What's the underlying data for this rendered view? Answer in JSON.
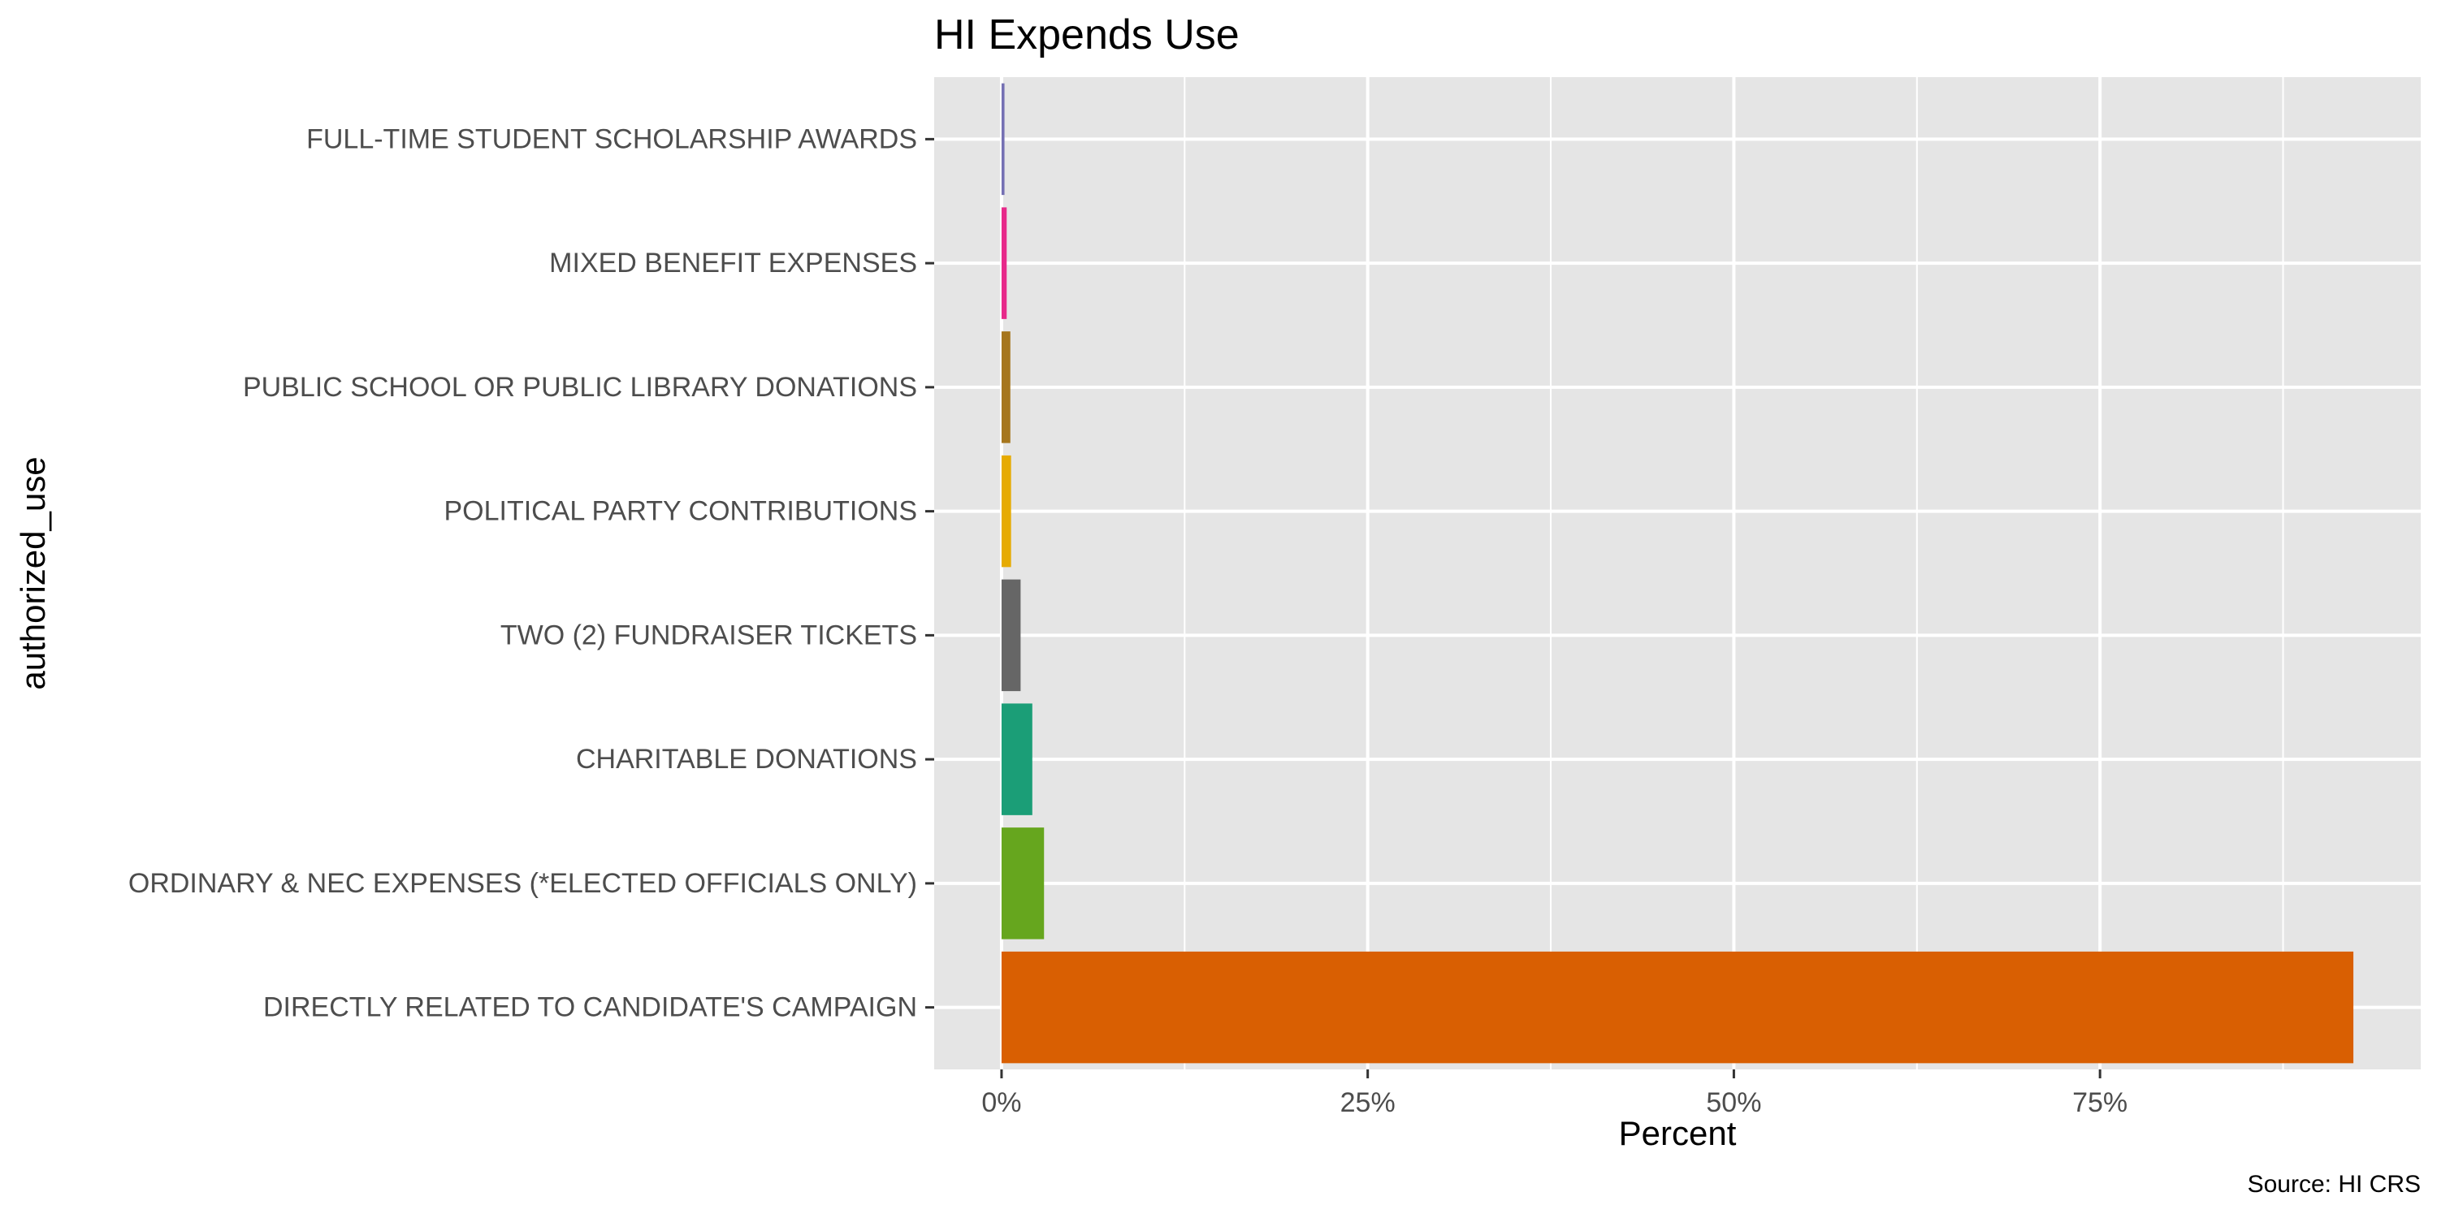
{
  "chart_data": {
    "type": "bar",
    "orientation": "horizontal",
    "title": "HI Expends Use",
    "xlabel": "Percent",
    "ylabel": "authorized_use",
    "caption": "Source: HI CRS",
    "categories": [
      "DIRECTLY RELATED TO CANDIDATE'S CAMPAIGN",
      "ORDINARY & NEC EXPENSES (*ELECTED OFFICIALS ONLY)",
      "CHARITABLE DONATIONS",
      "TWO (2) FUNDRAISER TICKETS",
      "POLITICAL PARTY CONTRIBUTIONS",
      "PUBLIC SCHOOL OR PUBLIC LIBRARY DONATIONS",
      "MIXED BENEFIT EXPENSES",
      "FULL-TIME STUDENT SCHOLARSHIP AWARDS"
    ],
    "values": [
      0.923,
      0.029,
      0.021,
      0.013,
      0.0065,
      0.006,
      0.0035,
      0.002
    ],
    "colors": [
      "#D95F02",
      "#66A61E",
      "#1B9E77",
      "#666666",
      "#E6AB02",
      "#A6761D",
      "#E7298A",
      "#7570B3"
    ],
    "x_ticks": [
      0,
      0.25,
      0.5,
      0.75
    ],
    "x_tick_labels": [
      "0%",
      "25%",
      "50%",
      "75%"
    ],
    "xlim": [
      -0.046,
      0.969
    ],
    "grid": true,
    "legend": "none",
    "panel_background": "#E5E5E5",
    "grid_color": "#FFFFFF"
  }
}
